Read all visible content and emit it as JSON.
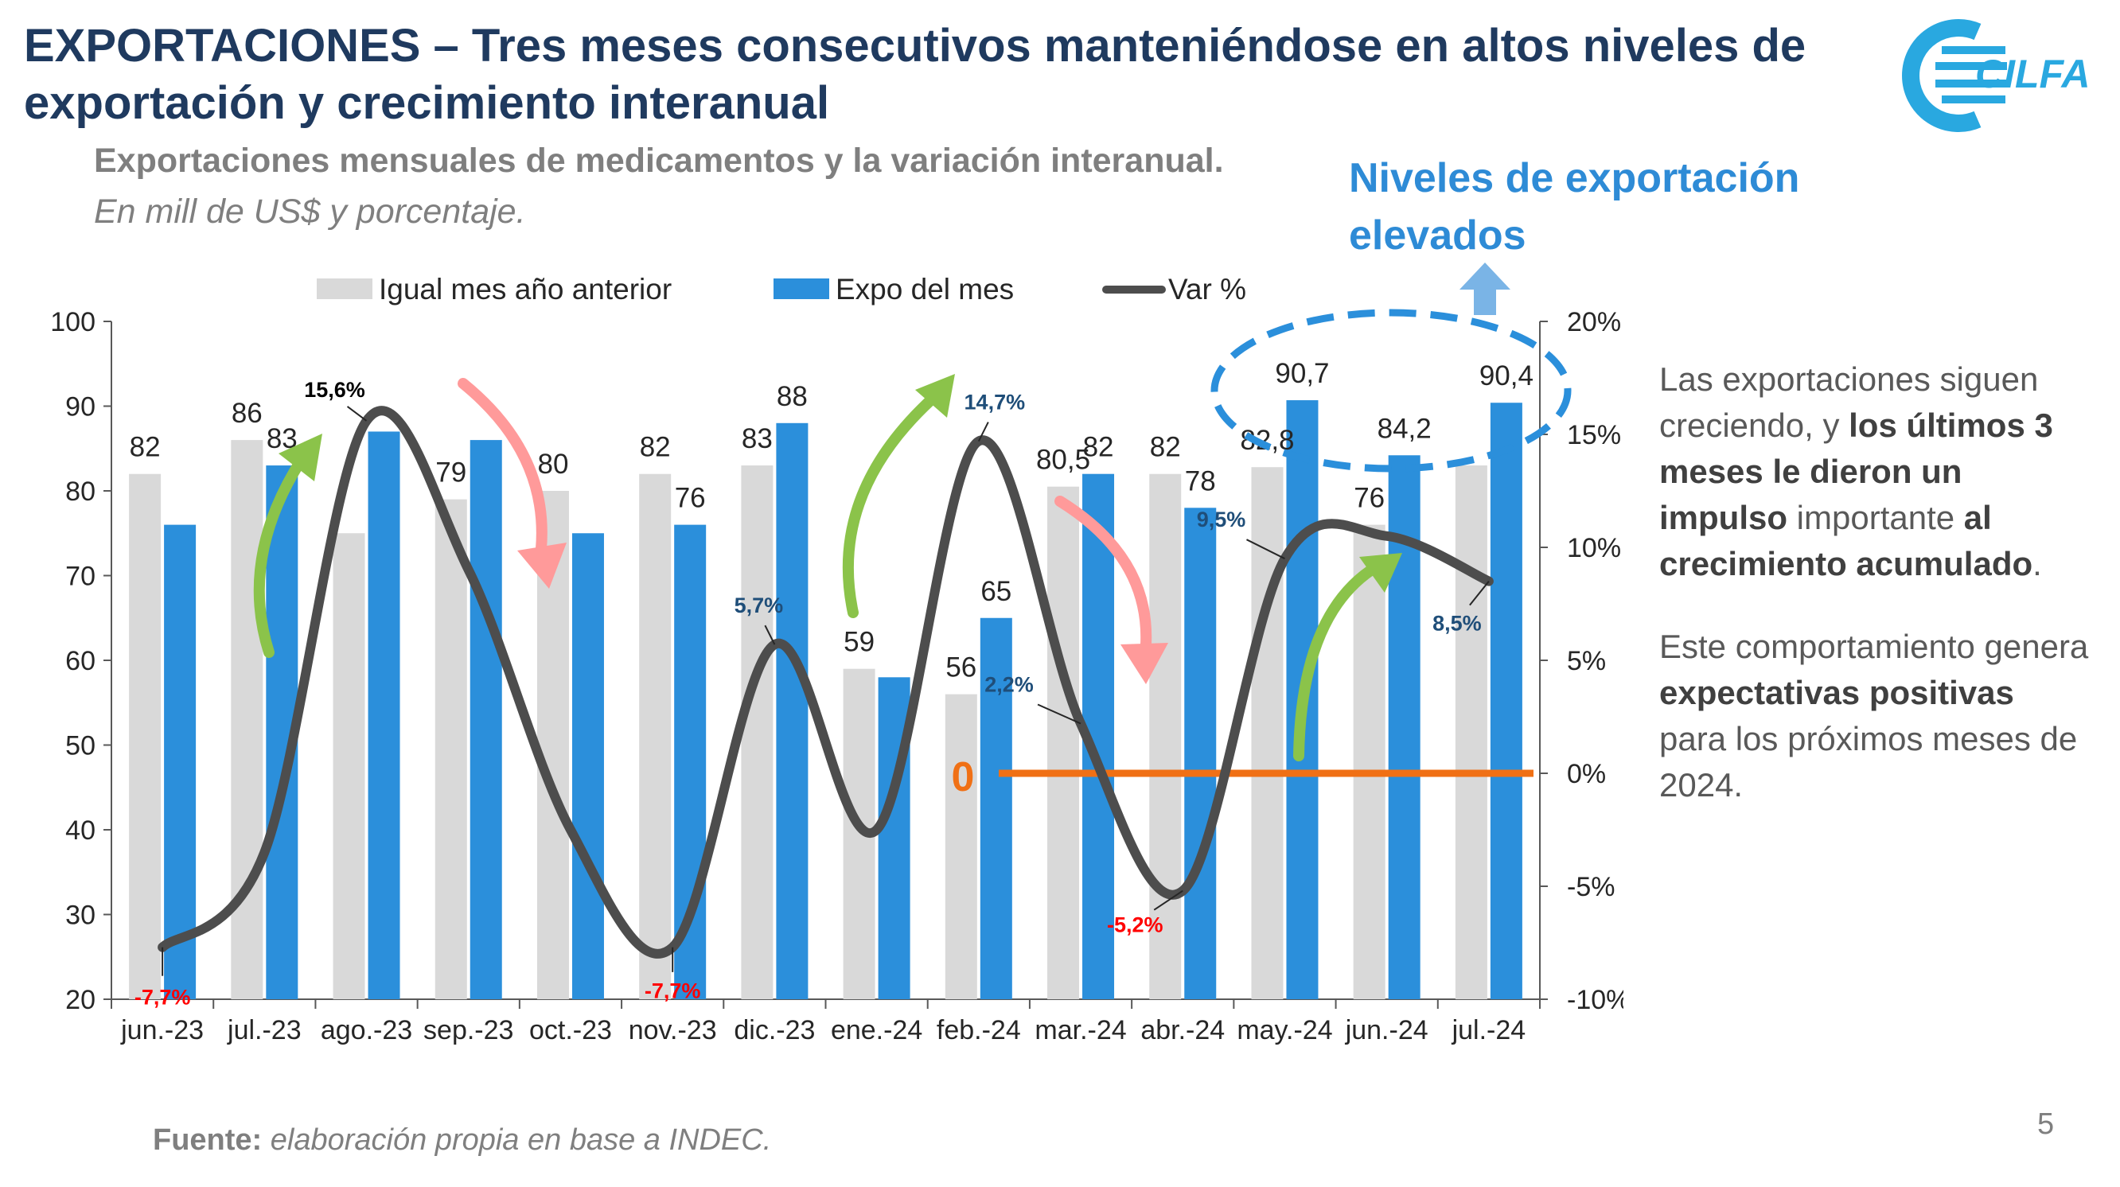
{
  "header": {
    "title": "EXPORTACIONES – Tres meses consecutivos manteniéndose en altos niveles de exportación y crecimiento interanual",
    "logo_text": "CILFA",
    "subtitle": "Exportaciones mensuales de medicamentos y la variación interanual.",
    "subtitle_units": "En mill de US$ y porcentaje."
  },
  "callout": {
    "text": "Niveles de exportación elevados"
  },
  "side_text": {
    "p1_a": "Las exportaciones siguen creciendo, y ",
    "p1_b": "los últimos 3 meses le dieron un impulso",
    "p1_c": " importante ",
    "p1_d": "al crecimiento acumulado",
    "p1_e": ".",
    "p2_a": "Este comportamiento genera ",
    "p2_b": "expectativas positivas",
    "p2_c": " para los próximos meses de 2024."
  },
  "footer": {
    "source_label": "Fuente:",
    "source_text": " elaboración propia en base a INDEC.",
    "page": "5"
  },
  "colors": {
    "prev": "#d9d9d9",
    "current": "#2b8fdb",
    "line": "#4d4d4d",
    "zero": "#f07015",
    "neg": "#ff0000",
    "pos": "#1f4e79",
    "arrow_up": "#8bc34a",
    "arrow_down": "#ff9a9a",
    "ellipse": "#2b8fdb"
  },
  "chart_data": {
    "type": "bar",
    "categories": [
      "jun.-23",
      "jul.-23",
      "ago.-23",
      "sep.-23",
      "oct.-23",
      "nov.-23",
      "dic.-23",
      "ene.-24",
      "feb.-24",
      "mar.-24",
      "abr.-24",
      "may.-24",
      "jun.-24",
      "jul.-24"
    ],
    "series": [
      {
        "name": "Igual mes año anterior",
        "type": "bar",
        "values": [
          82,
          86,
          75,
          79,
          80,
          82,
          83,
          59,
          56,
          80.5,
          82,
          82.8,
          76,
          83
        ],
        "labels": [
          "82",
          "86",
          "",
          "79",
          "80",
          "82",
          "83",
          "59",
          "56",
          "80,5",
          "82",
          "82,8",
          "76",
          ""
        ]
      },
      {
        "name": "Expo del mes",
        "type": "bar",
        "values": [
          76,
          83,
          87,
          86,
          75,
          76,
          88,
          58,
          65,
          82,
          78,
          90.7,
          84.2,
          90.4
        ],
        "labels": [
          "",
          "83",
          "",
          "",
          "",
          "76",
          "88",
          "",
          "65",
          "82",
          "78",
          "90,7",
          "84,2",
          "90,4"
        ]
      },
      {
        "name": "Var %",
        "type": "line",
        "axis": "right",
        "values": [
          -7.7,
          -3.5,
          15.6,
          9.0,
          -2.5,
          -7.7,
          5.7,
          -2.5,
          14.7,
          2.2,
          -5.2,
          9.5,
          10.5,
          8.5
        ],
        "labels": [
          "-7,7%",
          "",
          "15,6%",
          "",
          "",
          "-7,7%",
          "5,7%",
          "",
          "14,7%",
          "2,2%",
          "-5,2%",
          "9,5%",
          "",
          "8,5%"
        ]
      }
    ],
    "ylim": [
      20,
      100
    ],
    "y_ticks": [
      "100",
      "90",
      "80",
      "70",
      "60",
      "50",
      "40",
      "30",
      "20"
    ],
    "y2lim": [
      -10,
      20
    ],
    "y2_ticks": [
      "20%",
      "15%",
      "10%",
      "5%",
      "0%",
      "-5%",
      "-10%"
    ],
    "zero_label": "0",
    "legend_position": "top"
  }
}
